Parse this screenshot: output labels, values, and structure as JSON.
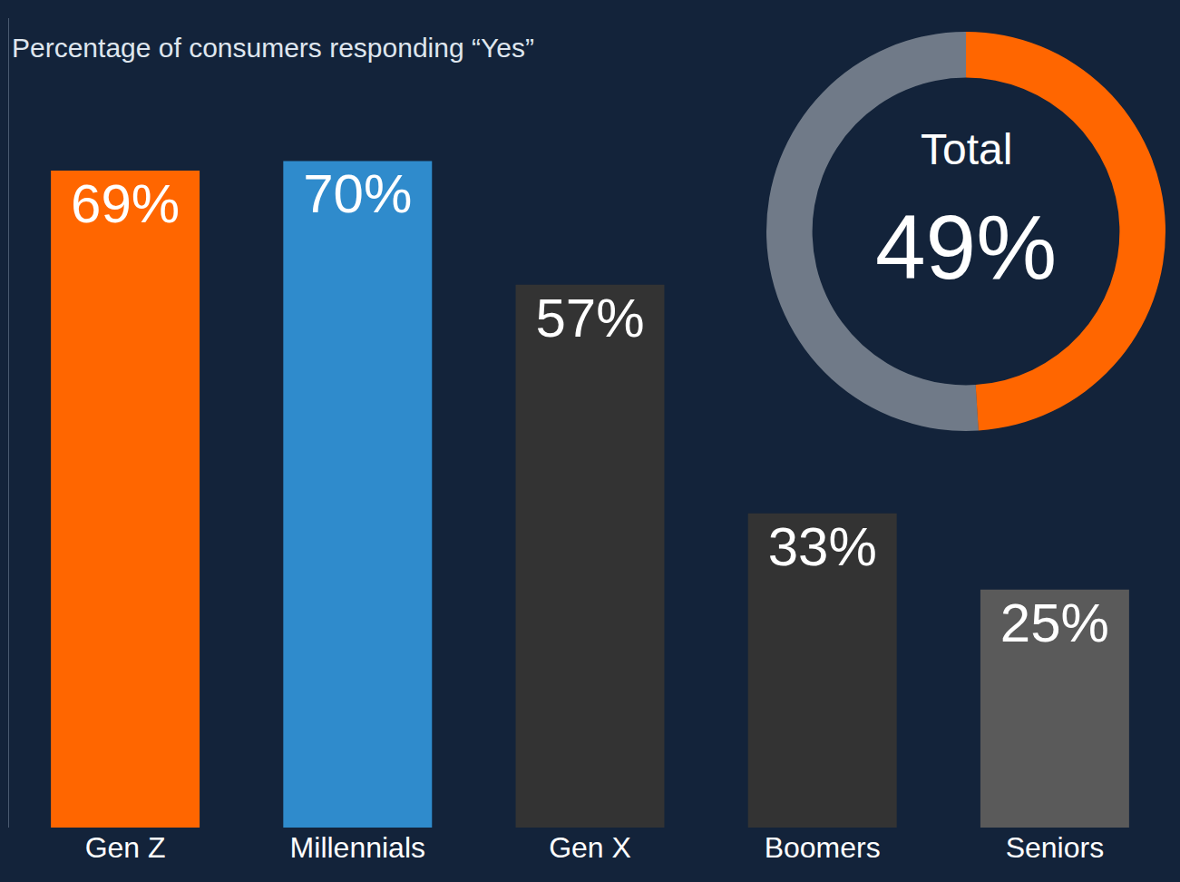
{
  "chart_data": [
    {
      "type": "bar",
      "subtitle": "Percentage of consumers responding “Yes”",
      "categories": [
        "Gen Z",
        "Millennials",
        "Gen X",
        "Boomers",
        "Seniors"
      ],
      "values": [
        69,
        70,
        57,
        33,
        25
      ],
      "value_labels": [
        "69%",
        "70%",
        "57%",
        "33%",
        "25%"
      ],
      "colors": [
        "#ff6600",
        "#2f8bcc",
        "#333333",
        "#333333",
        "#5a5a5a"
      ],
      "ylim": [
        0,
        85
      ],
      "data_labels": true,
      "tick_labels": "x",
      "grid": false
    },
    {
      "type": "pie",
      "title": "Total",
      "values": [
        49
      ],
      "value_labels": [
        "49%"
      ],
      "color": "#ff6600"
    }
  ]
}
